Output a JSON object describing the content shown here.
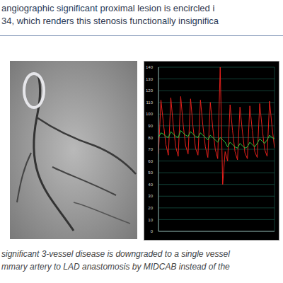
{
  "header": {
    "lines": [
      "angiographic significant proximal lesion is encircled i",
      "34, which renders this stenosis functionally insignifica"
    ]
  },
  "chart_data": {
    "type": "line",
    "x": [
      0,
      1,
      2,
      3,
      4,
      5,
      6,
      7,
      8,
      9,
      10,
      11,
      12,
      13,
      14,
      15,
      16,
      17,
      18,
      19,
      20,
      21,
      22,
      23,
      24,
      25,
      26,
      27,
      28,
      29,
      30,
      31,
      32,
      33,
      34,
      35,
      36,
      37,
      38,
      39,
      40,
      41,
      42,
      43,
      44,
      45,
      46,
      47
    ],
    "xlim": [
      0,
      47
    ],
    "ylim": [
      0,
      140
    ],
    "yticks": [
      0,
      10,
      20,
      30,
      40,
      50,
      60,
      70,
      80,
      90,
      100,
      110,
      120,
      130,
      140
    ],
    "grid": true,
    "tick_labels": "y",
    "series": [
      {
        "color": "#e8201c",
        "values": [
          66,
          112,
          92,
          74,
          65,
          114,
          90,
          72,
          64,
          115,
          91,
          73,
          66,
          113,
          89,
          71,
          65,
          112,
          90,
          72,
          63,
          110,
          88,
          70,
          62,
          140,
          40,
          68,
          60,
          108,
          86,
          68,
          61,
          106,
          85,
          67,
          62,
          107,
          86,
          68,
          63,
          109,
          88,
          70,
          64,
          111,
          89,
          71
        ]
      },
      {
        "color": "#2ecc40",
        "values": [
          80,
          84,
          83,
          81,
          80,
          85,
          83,
          81,
          80,
          86,
          84,
          82,
          81,
          85,
          83,
          81,
          80,
          84,
          82,
          80,
          78,
          82,
          80,
          78,
          76,
          80,
          78,
          76,
          72,
          76,
          74,
          72,
          71,
          75,
          73,
          71,
          72,
          76,
          74,
          72,
          75,
          79,
          77,
          75,
          78,
          82,
          80,
          79
        ]
      }
    ]
  },
  "caption": {
    "lines": [
      "significant 3-vessel disease is downgraded to a single vessel",
      "mmary artery to LAD anastomosis by MIDCAB instead of the"
    ]
  }
}
